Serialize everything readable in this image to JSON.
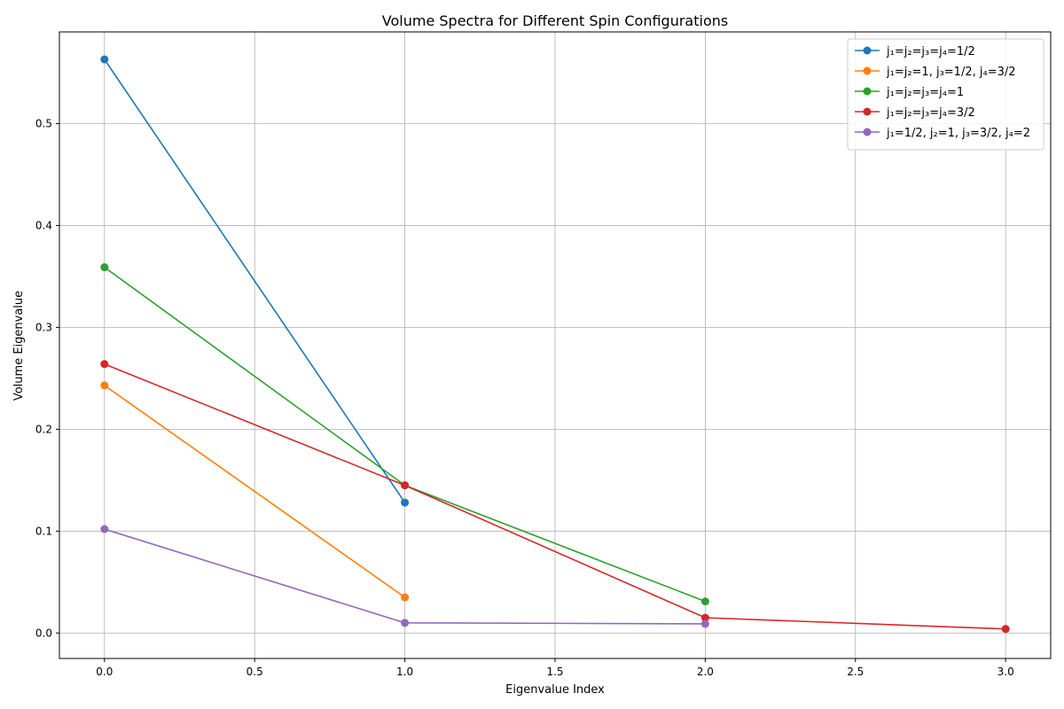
{
  "chart_data": {
    "type": "line",
    "title": "Volume Spectra for Different Spin Configurations",
    "xlabel": "Eigenvalue Index",
    "ylabel": "Volume Eigenvalue",
    "xlim": [
      -0.15,
      3.15
    ],
    "ylim": [
      -0.025,
      0.59
    ],
    "xticks": [
      "0.0",
      "0.5",
      "1.0",
      "1.5",
      "2.0",
      "2.5",
      "3.0"
    ],
    "xtick_values": [
      0,
      0.5,
      1,
      1.5,
      2,
      2.5,
      3
    ],
    "yticks": [
      "0.0",
      "0.1",
      "0.2",
      "0.3",
      "0.4",
      "0.5"
    ],
    "ytick_values": [
      0,
      0.1,
      0.2,
      0.3,
      0.4,
      0.5
    ],
    "grid": true,
    "legend_position": "top-right",
    "series": [
      {
        "name": "j₁=j₂=j₃=j₄=1/2",
        "color": "#1f77b4",
        "x": [
          0,
          1
        ],
        "y": [
          0.563,
          0.128
        ]
      },
      {
        "name": "j₁=j₂=1, j₃=1/2, j₄=3/2",
        "color": "#ff7f0e",
        "x": [
          0,
          1
        ],
        "y": [
          0.243,
          0.035
        ]
      },
      {
        "name": "j₁=j₂=j₃=j₄=1",
        "color": "#2ca02c",
        "x": [
          0,
          1,
          2
        ],
        "y": [
          0.359,
          0.145,
          0.031
        ]
      },
      {
        "name": "j₁=j₂=j₃=j₄=3/2",
        "color": "#d62728",
        "x": [
          0,
          1,
          2,
          3
        ],
        "y": [
          0.264,
          0.145,
          0.015,
          0.004
        ]
      },
      {
        "name": "j₁=1/2, j₂=1, j₃=3/2, j₄=2",
        "color": "#9467bd",
        "x": [
          0,
          1,
          2
        ],
        "y": [
          0.102,
          0.01,
          0.009
        ]
      }
    ]
  }
}
